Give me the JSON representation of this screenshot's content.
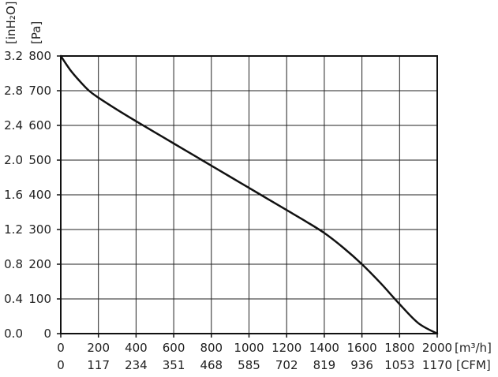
{
  "chart_data": {
    "type": "line",
    "x_units_primary": "[m³/h]",
    "x_units_secondary": "[CFM]",
    "y_units_primary": "[Pa]",
    "y_units_secondary": "[inH₂O]",
    "x_ticks_primary": [
      "0",
      "200",
      "400",
      "600",
      "800",
      "1000",
      "1200",
      "1400",
      "1600",
      "1800",
      "2000"
    ],
    "x_ticks_secondary": [
      "0",
      "117",
      "234",
      "351",
      "468",
      "585",
      "702",
      "819",
      "936",
      "1053",
      "1170"
    ],
    "y_ticks_primary": [
      "0",
      "100",
      "200",
      "300",
      "400",
      "500",
      "600",
      "700",
      "800"
    ],
    "y_ticks_secondary": [
      "0.0",
      "0.4",
      "0.8",
      "1.2",
      "1.6",
      "2.0",
      "2.4",
      "2.8",
      "3.2"
    ],
    "xlim": [
      0,
      2000
    ],
    "ylim": [
      0,
      800
    ],
    "grid": true,
    "series": [
      {
        "x": [
          0,
          50,
          100,
          150,
          200,
          300,
          400,
          500,
          600,
          700,
          800,
          900,
          1000,
          1100,
          1200,
          1300,
          1400,
          1500,
          1600,
          1700,
          1800,
          1900,
          2000
        ],
        "y": [
          800,
          760,
          728,
          700,
          680,
          645,
          612,
          580,
          548,
          516,
          484,
          452,
          420,
          388,
          356,
          324,
          290,
          248,
          200,
          145,
          85,
          30,
          0
        ]
      }
    ]
  }
}
